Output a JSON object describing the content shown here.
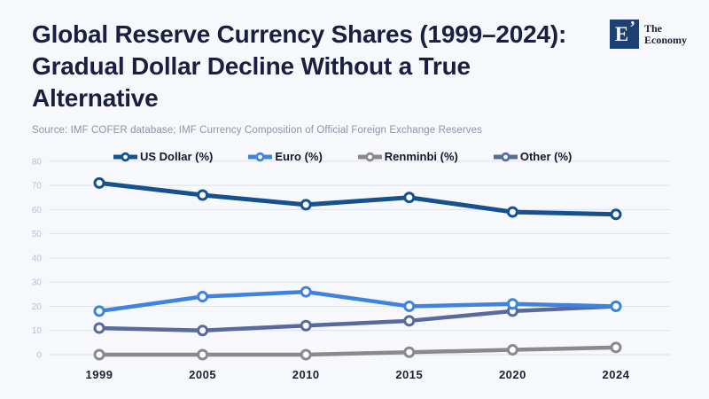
{
  "header": {
    "title": "Global Reserve Currency Shares (1999–2024): Gradual Dollar Decline Without a True Alternative",
    "title_lines": [
      "Global Reserve Currency Shares (1999–2024):",
      "Gradual Dollar Decline Without a True",
      "Alternative"
    ],
    "logo": {
      "mark": "E",
      "accent": "’",
      "line1": "The",
      "line2": "Economy"
    }
  },
  "source": "Source: IMF COFER database; IMF Currency Composition of Official Foreign Exchange Reserves",
  "chart_data": {
    "type": "line",
    "categories": [
      "1999",
      "2005",
      "2010",
      "2015",
      "2020",
      "2024"
    ],
    "series": [
      {
        "name": "US Dollar (%)",
        "color": "#15518f",
        "values": [
          71,
          66,
          62,
          65,
          59,
          58
        ]
      },
      {
        "name": "Euro (%)",
        "color": "#3f83e0",
        "values": [
          18,
          24,
          26,
          20,
          21,
          20
        ]
      },
      {
        "name": "Renminbi (%)",
        "color": "#8a8a8a",
        "values": [
          0,
          0,
          0,
          1,
          2,
          3
        ]
      },
      {
        "name": "Other (%)",
        "color": "#58699b",
        "values": [
          11,
          10,
          12,
          14,
          18,
          20
        ]
      }
    ],
    "ylim": [
      0,
      80
    ],
    "yticks": [
      0,
      10,
      20,
      30,
      40,
      50,
      60,
      70,
      80
    ],
    "grid": true,
    "legend_position": "top",
    "marker": "open-circle"
  },
  "colors": {
    "background": "#f7f8fc",
    "title_text": "#1a1f42",
    "source_text": "#8f94a5",
    "grid_line": "#dde1ec",
    "y_tick_text": "#b6bfd6",
    "x_tick_text": "#1b2234",
    "legend_text": "#10182b",
    "logo_navy": "#1d3f72",
    "marker_fill": "#ffffff"
  }
}
